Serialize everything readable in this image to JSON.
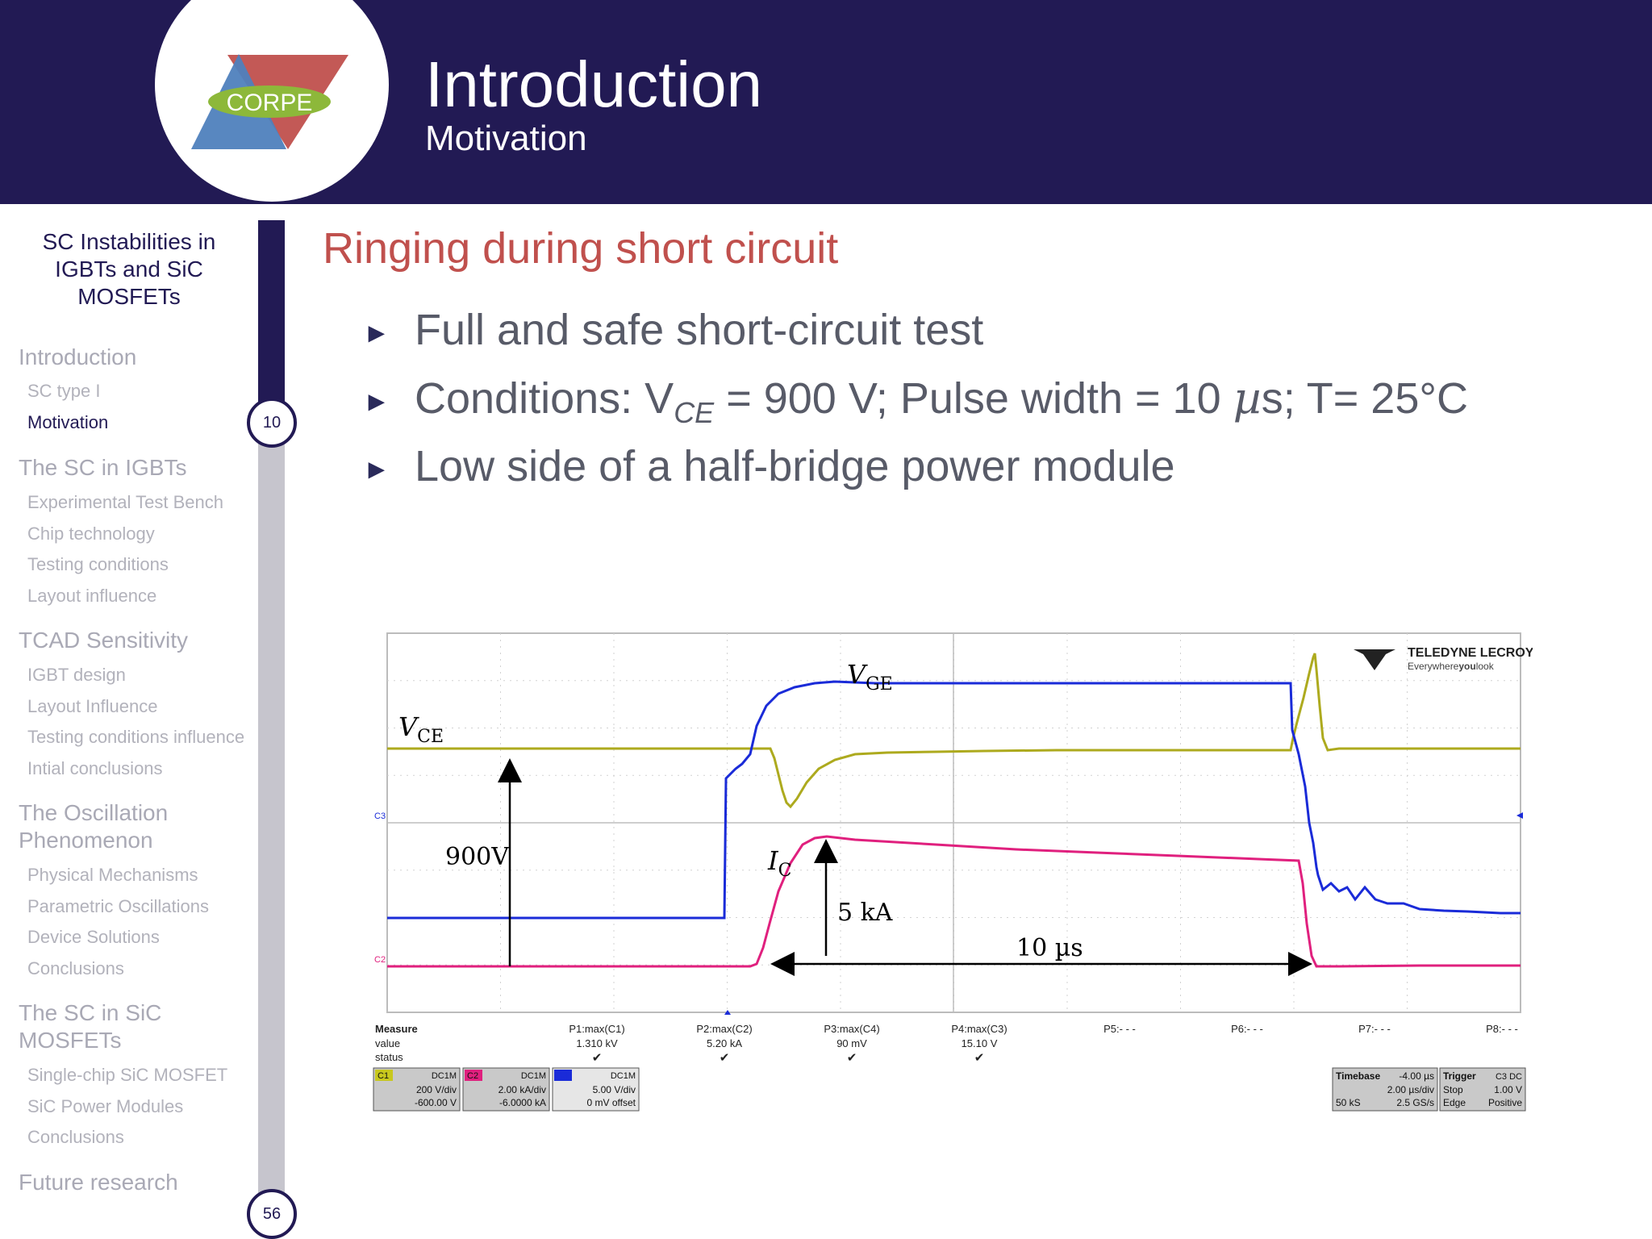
{
  "header": {
    "logo_text": "CORPE",
    "title": "Introduction",
    "subtitle": "Motivation"
  },
  "sidebar": {
    "talk_title": "SC Instabilities in IGBTs and SiC MOSFETs",
    "sections": [
      {
        "label": "Introduction",
        "items": [
          "SC type I",
          "Motivation"
        ]
      },
      {
        "label": "The SC in IGBTs",
        "items": [
          "Experimental Test Bench",
          "Chip technology",
          "Testing conditions",
          "Layout influence"
        ]
      },
      {
        "label": "TCAD Sensitivity",
        "items": [
          "IGBT design",
          "Layout Influence",
          "Testing conditions influence",
          "Intial conclusions"
        ]
      },
      {
        "label": "The Oscillation Phenomenon",
        "items": [
          "Physical Mechanisms",
          "Parametric Oscillations",
          "Device Solutions",
          "Conclusions"
        ]
      },
      {
        "label": "The SC in SiC MOSFETs",
        "items": [
          "Single-chip SiC MOSFET",
          "SiC Power Modules",
          "Conclusions"
        ]
      },
      {
        "label": "Future research",
        "items": []
      }
    ],
    "current_page": "10",
    "total_pages": "56",
    "progress_fraction": 0.18
  },
  "frame": {
    "title": "Ringing during short circuit",
    "bullet1": "Full and safe short-circuit test",
    "bullet2_pre": "Conditions: V",
    "bullet2_sub": "CE",
    "bullet2_mid": " = 900 V; Pulse width = 10 ",
    "bullet2_mu": "µ",
    "bullet2_post": "s; T= 25°C",
    "bullet3": "Low side of a half-bridge power module"
  },
  "scope": {
    "vendor_name": "TELEDYNE LECROY",
    "vendor_tagline_pre": "Everywhere",
    "vendor_tagline_bold": "you",
    "vendor_tagline_post": "look",
    "labels": {
      "vge_main": "V",
      "vge_sub": "GE",
      "vce_main": "V",
      "vce_sub": "CE",
      "ic_main": "I",
      "ic_sub": "C"
    },
    "annotations": {
      "voltage": "900V",
      "current": "5 kA",
      "time": "10 µs"
    },
    "marker_c3": "C3",
    "marker_c2": "C2",
    "measure_header": {
      "title": "Measure",
      "value": "value",
      "status": "status"
    },
    "measures": [
      {
        "label": "P1:max(C1)",
        "value": "1.310 kV",
        "ok": true
      },
      {
        "label": "P2:max(C2)",
        "value": "5.20 kA",
        "ok": true
      },
      {
        "label": "P3:max(C4)",
        "value": "90 mV",
        "ok": true
      },
      {
        "label": "P4:max(C3)",
        "value": "15.10 V",
        "ok": true
      },
      {
        "label": "P5:- - -",
        "value": "",
        "ok": false
      },
      {
        "label": "P6:- - -",
        "value": "",
        "ok": false
      },
      {
        "label": "P7:- - -",
        "value": "",
        "ok": false
      },
      {
        "label": "P8:- - -",
        "value": "",
        "ok": false
      }
    ],
    "channels": [
      {
        "id": "C1",
        "coupling": "DC1M",
        "scale": "200 V/div",
        "offset": "-600.00 V",
        "color": "#c8c81e"
      },
      {
        "id": "C2",
        "coupling": "DC1M",
        "scale": "2.00 kA/div",
        "offset": "-6.0000 kA",
        "color": "#e0207e"
      },
      {
        "id": "C3",
        "coupling": "DC1M",
        "scale": "5.00 V/div",
        "offset": "0 mV offset",
        "color": "#1a2bd8"
      }
    ],
    "timebase": {
      "label": "Timebase",
      "value": "-4.00 µs",
      "scale": "2.00 µs/div",
      "samples": "50 kS",
      "rate": "2.5 GS/s"
    },
    "trigger": {
      "label": "Trigger",
      "channel": "C3 DC",
      "mode": "Stop",
      "level": "1.00 V",
      "type": "Edge",
      "slope": "Positive"
    },
    "colors": {
      "vce": "#adaa1e",
      "vge": "#1a2bd8",
      "ic": "#e0207e"
    }
  }
}
